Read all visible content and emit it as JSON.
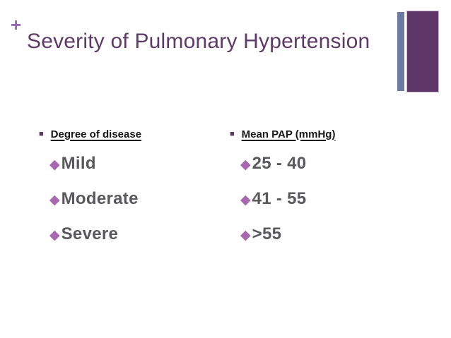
{
  "slide": {
    "plus_marker": "+",
    "title": "Severity of Pulmonary Hypertension"
  },
  "icons": {
    "header_bullet": "■",
    "item_bullet": "◆"
  },
  "columns": [
    {
      "header": "Degree of disease",
      "items": [
        "Mild",
        "Moderate",
        "Severe"
      ]
    },
    {
      "header": "Mean PAP (mmHg)",
      "items": [
        "25 - 40",
        "41 - 55",
        ">55"
      ]
    }
  ],
  "colors": {
    "title_text": "#5e3a68",
    "plus_marker": "#9a68b2",
    "accent_bar": "#6b7aa1",
    "accent_block": "#5e3567",
    "header_text": "#161616",
    "item_text": "#59595b",
    "diamond_bullet": "#a868b0",
    "square_bullet": "#5a3b5e",
    "background": "#ffffff"
  }
}
